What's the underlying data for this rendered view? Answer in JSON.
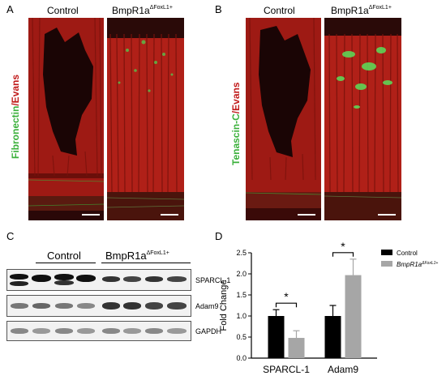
{
  "panels": {
    "A": {
      "letter": "A",
      "control_title": "Control",
      "mutant_title": "BmpR1a",
      "mutant_sup": "ΔFoxL1+",
      "ylabel_green": "Fibronectin",
      "ylabel_sep": "/",
      "ylabel_red": "Evans"
    },
    "B": {
      "letter": "B",
      "control_title": "Control",
      "mutant_title": "BmpR1a",
      "mutant_sup": "ΔFoxL1+",
      "ylabel_green": "Tenascin-C",
      "ylabel_sep": "/",
      "ylabel_red": "Evans"
    },
    "C": {
      "letter": "C",
      "control_label": "Control",
      "mutant_label": "BmpR1a",
      "mutant_sup": "ΔFoxL1+",
      "blots": [
        "SPARCL-1",
        "Adam9",
        "GAPDH"
      ]
    },
    "D": {
      "letter": "D"
    }
  },
  "colors": {
    "evans_red": "#c01818",
    "marker_green": "#3ab03a",
    "control_bar": "#000000",
    "mutant_bar": "#a6a6a6"
  },
  "chart_data": {
    "type": "bar",
    "categories": [
      "SPARCL-1",
      "Adam9"
    ],
    "series": [
      {
        "name": "Control",
        "values": [
          1.0,
          1.0
        ],
        "errors": [
          0.15,
          0.25
        ],
        "color": "#000000"
      },
      {
        "name": "BmpR1a",
        "name_sup": "ΔFoxL1+",
        "values": [
          0.48,
          1.97
        ],
        "errors": [
          0.17,
          0.38
        ],
        "color": "#a6a6a6"
      }
    ],
    "ylabel": "Fold Change",
    "ylim": [
      0,
      2.5
    ],
    "yticks": [
      "0.0",
      "0.5",
      "1.0",
      "1.5",
      "2.0",
      "2.5"
    ],
    "significance": [
      "*",
      "*"
    ],
    "legend": "top-right"
  }
}
